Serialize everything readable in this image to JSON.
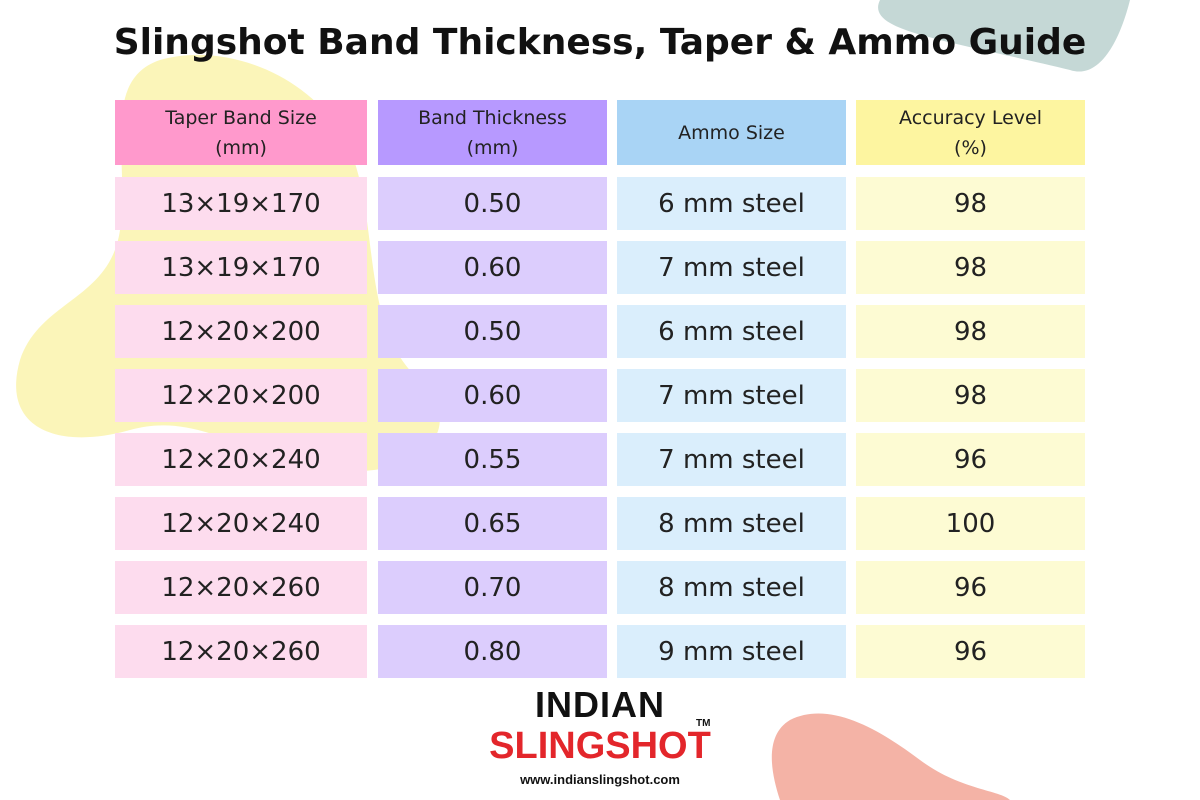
{
  "header": {
    "title": "Slingshot Band Thickness, Taper & Ammo Guide"
  },
  "table": {
    "columns": [
      "Taper Band Size (mm)",
      "Band Thickness (mm)",
      "Ammo Size",
      "Accuracy Level (%)"
    ],
    "rows": [
      [
        "13×19×170",
        "0.50",
        "6 mm steel",
        "98"
      ],
      [
        "13×19×170",
        "0.60",
        "7 mm steel",
        "98"
      ],
      [
        "12×20×200",
        "0.50",
        "6 mm steel",
        "98"
      ],
      [
        "12×20×200",
        "0.60",
        "7 mm steel",
        "98"
      ],
      [
        "12×20×240",
        "0.55",
        "7 mm steel",
        "96"
      ],
      [
        "12×20×240",
        "0.65",
        "8 mm steel",
        "100"
      ],
      [
        "12×20×260",
        "0.70",
        "8 mm steel",
        "96"
      ],
      [
        "12×20×260",
        "0.80",
        "9 mm steel",
        "96"
      ]
    ]
  },
  "footer": {
    "logo_top": "INDIAN",
    "logo_bottom": "SLINGSHOT",
    "trademark": "TM",
    "url": "www.indianslingshot.com"
  }
}
